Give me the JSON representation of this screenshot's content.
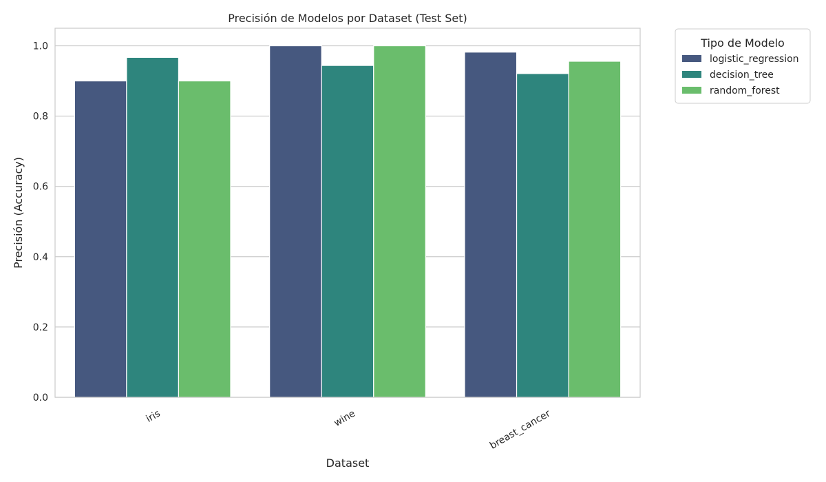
{
  "chart_data": {
    "type": "bar",
    "title": "Precisión de Modelos por Dataset (Test Set)",
    "xlabel": "Dataset",
    "ylabel": "Precisión (Accuracy)",
    "categories": [
      "iris",
      "wine",
      "breast_cancer"
    ],
    "series": [
      {
        "name": "logistic_regression",
        "color": "#46587f",
        "values": [
          0.9,
          1.0,
          0.982
        ]
      },
      {
        "name": "decision_tree",
        "color": "#2e857d",
        "values": [
          0.967,
          0.944,
          0.921
        ]
      },
      {
        "name": "random_forest",
        "color": "#6abd6c",
        "values": [
          0.9,
          1.0,
          0.956
        ]
      }
    ],
    "ylim": [
      0,
      1.05
    ],
    "yticks": [
      "0.0",
      "0.2",
      "0.4",
      "0.6",
      "0.8",
      "1.0"
    ],
    "ytick_values": [
      0,
      0.2,
      0.4,
      0.6,
      0.8,
      1.0
    ],
    "grid": true,
    "legend": {
      "title": "Tipo de Modelo",
      "placement": "outside-top-right"
    }
  }
}
